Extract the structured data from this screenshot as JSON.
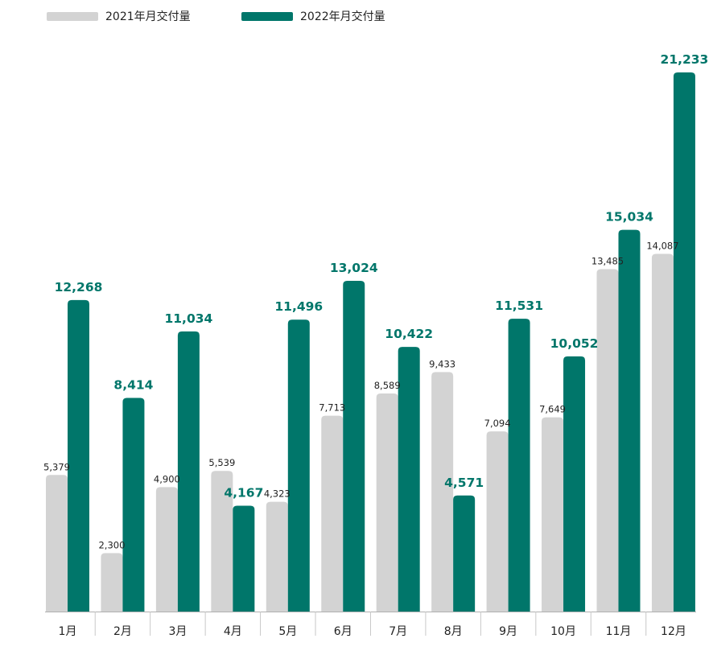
{
  "chart_data": {
    "type": "bar",
    "categories": [
      "1月",
      "2月",
      "3月",
      "4月",
      "5月",
      "6月",
      "7月",
      "8月",
      "9月",
      "10月",
      "11月",
      "12月"
    ],
    "series": [
      {
        "name": "2021年月交付量",
        "color": "#d3d3d3",
        "values": [
          5379,
          2300,
          4900,
          5539,
          4323,
          7713,
          8589,
          9433,
          7094,
          7649,
          13485,
          14087
        ],
        "labels": [
          "5,379",
          "2,300",
          "4,900",
          "5,539",
          "4,323",
          "7,713",
          "8,589",
          "9,433",
          "7,094",
          "7,649",
          "13,485",
          "14,087"
        ]
      },
      {
        "name": "2022年月交付量",
        "color": "#00766a",
        "values": [
          12268,
          8414,
          11034,
          4167,
          11496,
          13024,
          10422,
          4571,
          11531,
          10052,
          15034,
          21233
        ],
        "labels": [
          "12,268",
          "8,414",
          "11,034",
          "4,167",
          "11,496",
          "13,024",
          "10,422",
          "4,571",
          "11,531",
          "10,052",
          "15,034",
          "21,233"
        ]
      }
    ],
    "legend_position": "top-left",
    "grid": false
  }
}
